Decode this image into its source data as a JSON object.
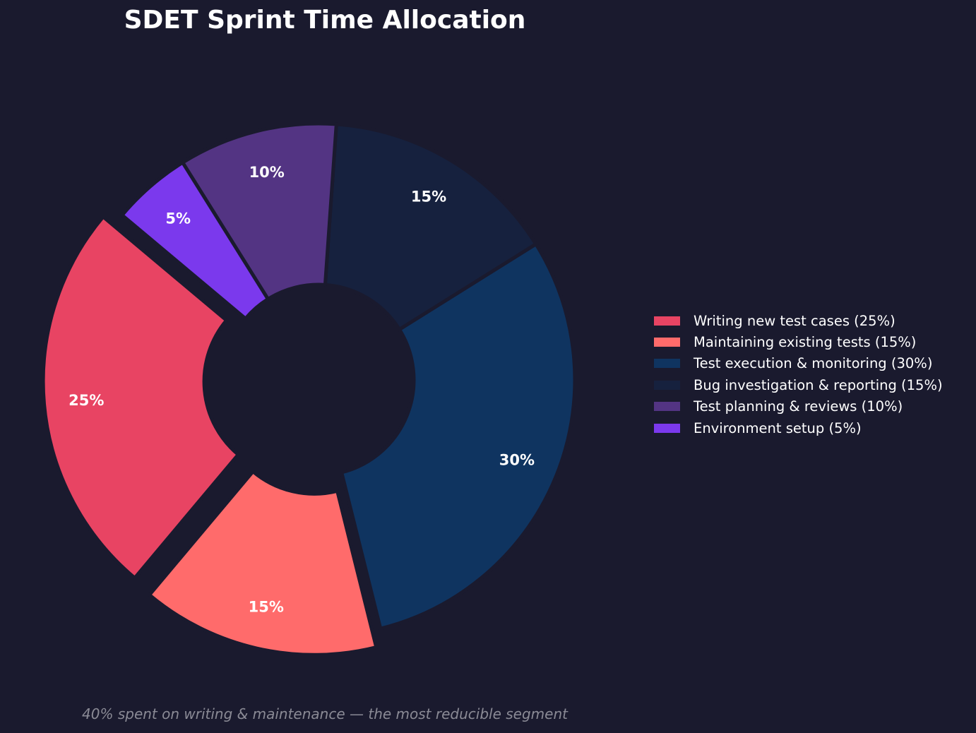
{
  "chart_data": {
    "type": "pie",
    "variant": "donut",
    "title": "SDET Sprint Time Allocation",
    "categories": [
      "Writing new test cases",
      "Maintaining existing tests",
      "Test execution & monitoring",
      "Bug investigation & reporting",
      "Test planning & reviews",
      "Environment setup"
    ],
    "values": [
      25,
      15,
      30,
      15,
      10,
      5
    ],
    "value_labels": [
      "25%",
      "15%",
      "30%",
      "15%",
      "10%",
      "5%"
    ],
    "legend_labels": [
      "Writing new test cases (25%)",
      "Maintaining existing tests (15%)",
      "Test execution & monitoring (30%)",
      "Bug investigation & reporting (15%)",
      "Test planning & reviews (10%)",
      "Environment setup (5%)"
    ],
    "colors": [
      "#e84463",
      "#ff6b6b",
      "#0f3460",
      "#16213e",
      "#533483",
      "#7b39ed"
    ],
    "exploded": [
      true,
      true,
      false,
      false,
      false,
      false
    ],
    "legend_position": "right",
    "annotation": "40% spent on writing & maintenance — the most reducible segment"
  },
  "colors": {
    "background": "#1a1a2e",
    "title": "#ffffff",
    "footnote": "#8a8a95"
  }
}
